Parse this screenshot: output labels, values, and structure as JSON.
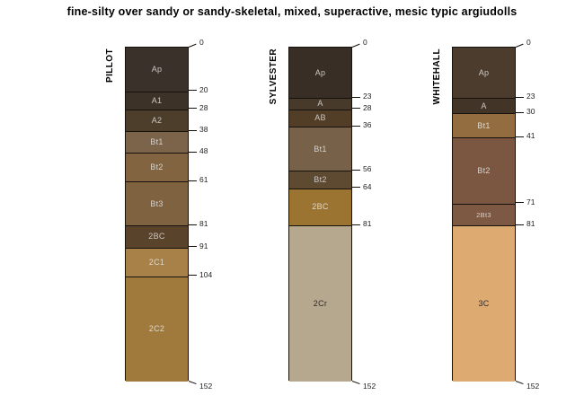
{
  "colors": {
    "background": "#ffffff",
    "line": "#15120e",
    "depth_label": "#222222",
    "title": "#000000"
  },
  "chart_data": {
    "type": "bar",
    "subtype": "soil-profile-depth-columns",
    "title": "fine-silty over sandy or sandy-skeletal, mixed, superactive, mesic typic argiudolls",
    "depth_axis_range": [
      0,
      152
    ],
    "legend_position": "none",
    "grid": false,
    "series": [
      {
        "name": "PILLOT",
        "depth_ticks": [
          0,
          20,
          28,
          38,
          48,
          61,
          81,
          91,
          104,
          152
        ],
        "horizons": [
          {
            "label": "Ap",
            "top": 0,
            "bottom": 20,
            "color": "#3a312a",
            "label_color": "#cbc7c2"
          },
          {
            "label": "A1",
            "top": 20,
            "bottom": 28,
            "color": "#3c3228",
            "label_color": "#cbc7c2"
          },
          {
            "label": "A2",
            "top": 28,
            "bottom": 38,
            "color": "#4d3d2b",
            "label_color": "#cbc7c2"
          },
          {
            "label": "Bt1",
            "top": 38,
            "bottom": 48,
            "color": "#7c644a",
            "label_color": "#d6d2cc"
          },
          {
            "label": "Bt2",
            "top": 48,
            "bottom": 61,
            "color": "#826540",
            "label_color": "#d6d2cc"
          },
          {
            "label": "Bt3",
            "top": 61,
            "bottom": 81,
            "color": "#7f6341",
            "label_color": "#d6d2cc"
          },
          {
            "label": "2BC",
            "top": 81,
            "bottom": 91,
            "color": "#59432b",
            "label_color": "#cbc7c2"
          },
          {
            "label": "2C1",
            "top": 91,
            "bottom": 104,
            "color": "#a88148",
            "label_color": "#ddd8d0"
          },
          {
            "label": "2C2",
            "top": 104,
            "bottom": 152,
            "color": "#a07a3d",
            "label_color": "#ddd8d0"
          }
        ]
      },
      {
        "name": "SYLVESTER",
        "depth_ticks": [
          0,
          23,
          28,
          36,
          56,
          64,
          81,
          152
        ],
        "horizons": [
          {
            "label": "Ap",
            "top": 0,
            "bottom": 23,
            "color": "#382e26",
            "label_color": "#cbc7c2"
          },
          {
            "label": "A",
            "top": 23,
            "bottom": 28,
            "color": "#473a2b",
            "label_color": "#cbc7c2"
          },
          {
            "label": "AB",
            "top": 28,
            "bottom": 36,
            "color": "#523e27",
            "label_color": "#cbc7c2"
          },
          {
            "label": "Bt1",
            "top": 36,
            "bottom": 56,
            "color": "#776149",
            "label_color": "#d6d2cc"
          },
          {
            "label": "Bt2",
            "top": 56,
            "bottom": 64,
            "color": "#5e4a31",
            "label_color": "#cbc7c2"
          },
          {
            "label": "2BC",
            "top": 64,
            "bottom": 81,
            "color": "#9b7432",
            "label_color": "#ddd8d0"
          },
          {
            "label": "2Cr",
            "top": 81,
            "bottom": 152,
            "color": "#b6a78f",
            "label_color": "#2e2a25"
          }
        ]
      },
      {
        "name": "WHITEHALL",
        "depth_ticks": [
          0,
          23,
          30,
          41,
          71,
          81,
          152
        ],
        "horizons": [
          {
            "label": "Ap",
            "top": 0,
            "bottom": 23,
            "color": "#4b3c2d",
            "label_color": "#cbc7c2"
          },
          {
            "label": "A",
            "top": 23,
            "bottom": 30,
            "color": "#423528",
            "label_color": "#cbc7c2"
          },
          {
            "label": "Bt1",
            "top": 30,
            "bottom": 41,
            "color": "#936d3f",
            "label_color": "#ddd8d0"
          },
          {
            "label": "Bt2",
            "top": 41,
            "bottom": 71,
            "color": "#7b5741",
            "label_color": "#d6d2cc"
          },
          {
            "label": "2Bt3",
            "top": 71,
            "bottom": 81,
            "color": "#7d5843",
            "label_color": "#d6d2cc",
            "small": true
          },
          {
            "label": "3C",
            "top": 81,
            "bottom": 152,
            "color": "#ddaa71",
            "label_color": "#2e2a25"
          }
        ]
      }
    ]
  }
}
